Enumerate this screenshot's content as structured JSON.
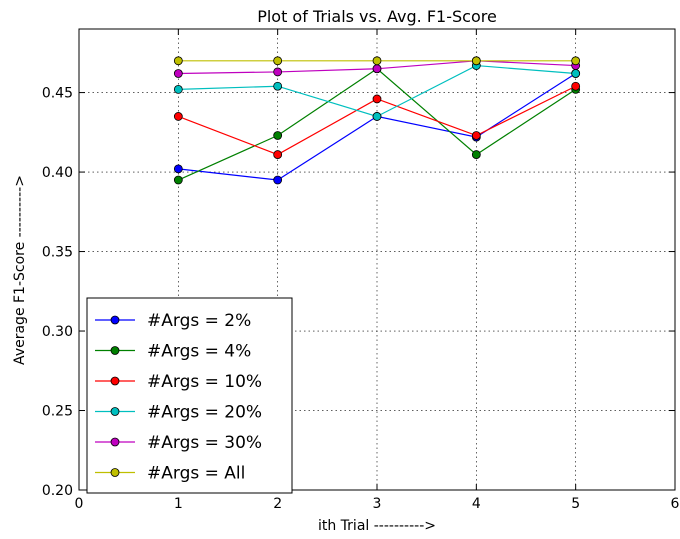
{
  "chart_data": {
    "type": "line",
    "title": "Plot of Trials vs. Avg. F1-Score",
    "xlabel": "ith Trial ---------->",
    "ylabel": "Average F1-Score ---------->",
    "xlim": [
      0,
      6
    ],
    "ylim": [
      0.2,
      0.49
    ],
    "xticks": [
      0,
      1,
      2,
      3,
      4,
      5,
      6
    ],
    "xtick_labels": [
      "0",
      "1",
      "2",
      "3",
      "4",
      "5",
      "6"
    ],
    "yticks": [
      0.2,
      0.25,
      0.3,
      0.35,
      0.4,
      0.45
    ],
    "ytick_labels": [
      "0.20",
      "0.25",
      "0.30",
      "0.35",
      "0.40",
      "0.45"
    ],
    "grid": true,
    "legend_position": "lower-left",
    "x": [
      1,
      2,
      3,
      4,
      5
    ],
    "series": [
      {
        "name": "#Args = 2%",
        "color": "#0000ff",
        "values": [
          0.402,
          0.395,
          0.435,
          0.422,
          0.462
        ]
      },
      {
        "name": "#Args = 4%",
        "color": "#008000",
        "values": [
          0.395,
          0.423,
          0.465,
          0.411,
          0.452
        ]
      },
      {
        "name": "#Args = 10%",
        "color": "#ff0000",
        "values": [
          0.435,
          0.411,
          0.446,
          0.423,
          0.454
        ]
      },
      {
        "name": "#Args = 20%",
        "color": "#00bfbf",
        "values": [
          0.452,
          0.454,
          0.435,
          0.467,
          0.462
        ]
      },
      {
        "name": "#Args = 30%",
        "color": "#bf00bf",
        "values": [
          0.462,
          0.463,
          0.465,
          0.47,
          0.467
        ]
      },
      {
        "name": "#Args = All",
        "color": "#bfbf00",
        "values": [
          0.47,
          0.47,
          0.47,
          0.47,
          0.47
        ]
      }
    ]
  }
}
